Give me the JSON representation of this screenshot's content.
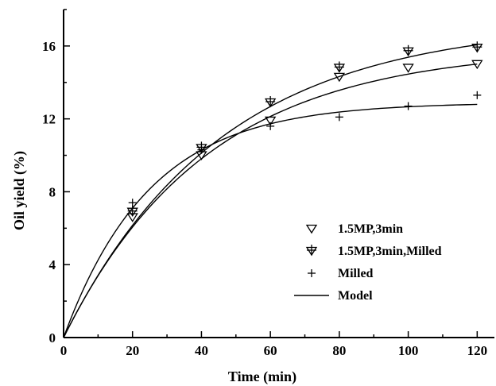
{
  "chart_data": {
    "type": "scatter",
    "xlabel": "Time (min)",
    "ylabel": "Oil yield (%)",
    "xlim": [
      0,
      125
    ],
    "ylim": [
      0,
      18
    ],
    "xticks": [
      0,
      20,
      40,
      60,
      80,
      100,
      120
    ],
    "yticks": [
      0,
      4,
      8,
      12,
      16
    ],
    "grid": false,
    "legend_position": "bottom-right",
    "series": [
      {
        "name": "1.5MP,3min",
        "marker": "triangle-down",
        "x": [
          20,
          40,
          60,
          80,
          100,
          120
        ],
        "y": [
          6.6,
          10.0,
          11.9,
          14.3,
          14.8,
          15.0
        ]
      },
      {
        "name": "1.5MP,3min,Milled",
        "marker": "triangle-down-plus",
        "x": [
          20,
          40,
          60,
          80,
          100,
          120
        ],
        "y": [
          6.9,
          10.4,
          12.9,
          14.8,
          15.7,
          15.9
        ]
      },
      {
        "name": "Milled",
        "marker": "plus",
        "x": [
          20,
          40,
          60,
          80,
          100,
          120
        ],
        "y": [
          7.4,
          10.3,
          11.6,
          12.1,
          12.7,
          13.3
        ]
      }
    ],
    "model": {
      "name": "Model",
      "style": "line",
      "curves": [
        {
          "for": "1.5MP,3min",
          "ymax": 15.9,
          "k": 0.024
        },
        {
          "for": "1.5MP,3min,Milled",
          "ymax": 17.3,
          "k": 0.022
        },
        {
          "for": "Milled",
          "ymax": 12.9,
          "k": 0.04
        }
      ]
    }
  },
  "colors": {
    "ink": "#000000",
    "background": "#ffffff"
  }
}
